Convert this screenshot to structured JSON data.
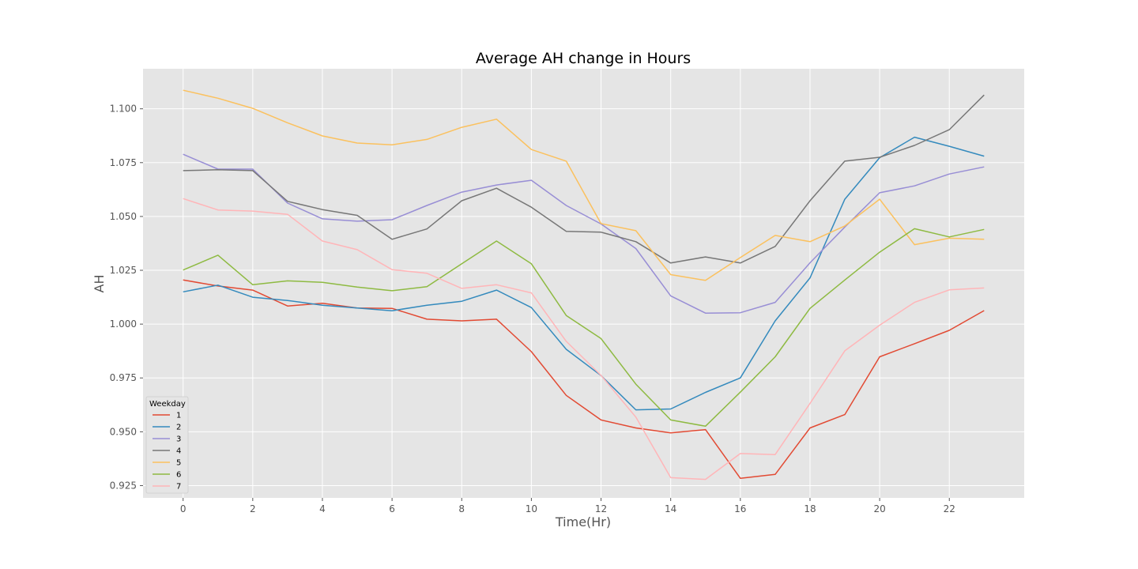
{
  "chart_data": {
    "type": "line",
    "title": "Average AH change in Hours",
    "xlabel": "Time(Hr)",
    "ylabel": "AH",
    "xlim": [
      -1.15,
      24.15
    ],
    "ylim": [
      0.9193,
      1.1186
    ],
    "xticks": [
      0,
      2,
      4,
      6,
      8,
      10,
      12,
      14,
      16,
      18,
      20,
      22
    ],
    "xtick_labels": [
      "0",
      "2",
      "4",
      "6",
      "8",
      "10",
      "12",
      "14",
      "16",
      "18",
      "20",
      "22"
    ],
    "yticks": [
      0.925,
      0.95,
      0.975,
      1.0,
      1.025,
      1.05,
      1.075,
      1.1
    ],
    "ytick_labels": [
      "0.925",
      "0.950",
      "0.975",
      "1.000",
      "1.025",
      "1.050",
      "1.075",
      "1.100"
    ],
    "grid": true,
    "legend": {
      "title": "Weekday",
      "position": "lower-left"
    },
    "x": [
      0,
      1,
      2,
      3,
      4,
      5,
      6,
      7,
      8,
      9,
      10,
      11,
      12,
      13,
      14,
      15,
      16,
      17,
      18,
      19,
      20,
      21,
      22,
      23
    ],
    "series": [
      {
        "name": "1",
        "color": "#E24A33",
        "values": [
          1.0205,
          1.0177,
          1.0158,
          1.0084,
          1.0097,
          1.0075,
          1.0073,
          1.0023,
          1.0015,
          1.0023,
          0.9872,
          0.9669,
          0.9555,
          0.9518,
          0.9495,
          0.951,
          0.9284,
          0.9302,
          0.9518,
          0.958,
          0.9848,
          0.9909,
          0.9971,
          1.0063
        ]
      },
      {
        "name": "2",
        "color": "#348ABD",
        "values": [
          1.015,
          1.0181,
          1.0125,
          1.011,
          1.0088,
          1.0075,
          1.0062,
          1.0088,
          1.0106,
          1.0158,
          1.0077,
          0.9883,
          0.9761,
          0.9602,
          0.9606,
          0.9683,
          0.975,
          1.0015,
          1.0215,
          1.058,
          1.0773,
          1.0868,
          1.0826,
          1.078
        ]
      },
      {
        "name": "3",
        "color": "#988ED5",
        "values": [
          1.0789,
          1.072,
          1.072,
          1.0562,
          1.0489,
          1.0478,
          1.0485,
          1.0551,
          1.0613,
          1.0646,
          1.0668,
          1.0551,
          1.0465,
          1.0351,
          1.0131,
          1.0051,
          1.0053,
          1.0101,
          1.0285,
          1.0451,
          1.061,
          1.0642,
          1.0697,
          1.073
        ]
      },
      {
        "name": "4",
        "color": "#777777",
        "values": [
          1.0713,
          1.0717,
          1.0713,
          1.057,
          1.0532,
          1.0505,
          1.0394,
          1.0442,
          1.0573,
          1.0631,
          1.0543,
          1.0431,
          1.0427,
          1.0383,
          1.0284,
          1.0312,
          1.0284,
          1.0361,
          1.0573,
          1.0757,
          1.0775,
          1.083,
          1.0903,
          1.1064
        ]
      },
      {
        "name": "5",
        "color": "#FBC15E",
        "values": [
          1.1086,
          1.1049,
          1.1002,
          1.0935,
          1.0874,
          1.0841,
          1.0833,
          1.0858,
          1.0914,
          1.0952,
          1.0811,
          1.0757,
          1.0467,
          1.0434,
          1.023,
          1.0203,
          1.0309,
          1.0412,
          1.0383,
          1.0456,
          1.058,
          1.0369,
          1.0399,
          1.0394
        ]
      },
      {
        "name": "6",
        "color": "#8EBA42",
        "values": [
          1.0251,
          1.032,
          1.0183,
          1.0201,
          1.0194,
          1.0172,
          1.0155,
          1.0174,
          1.028,
          1.0386,
          1.028,
          1.004,
          0.9933,
          0.9721,
          0.9555,
          0.9526,
          0.9684,
          0.9848,
          1.0073,
          1.0205,
          1.0334,
          1.0443,
          1.0405,
          1.044
        ]
      },
      {
        "name": "7",
        "color": "#FFB5B8",
        "values": [
          1.0583,
          1.053,
          1.0525,
          1.051,
          1.0386,
          1.0346,
          1.0253,
          1.0236,
          1.0166,
          1.0183,
          1.0145,
          0.992,
          0.9762,
          0.9568,
          0.9287,
          0.9279,
          0.9399,
          0.9394,
          0.9632,
          0.9876,
          0.9995,
          1.0101,
          1.0159,
          1.0168
        ]
      }
    ]
  }
}
